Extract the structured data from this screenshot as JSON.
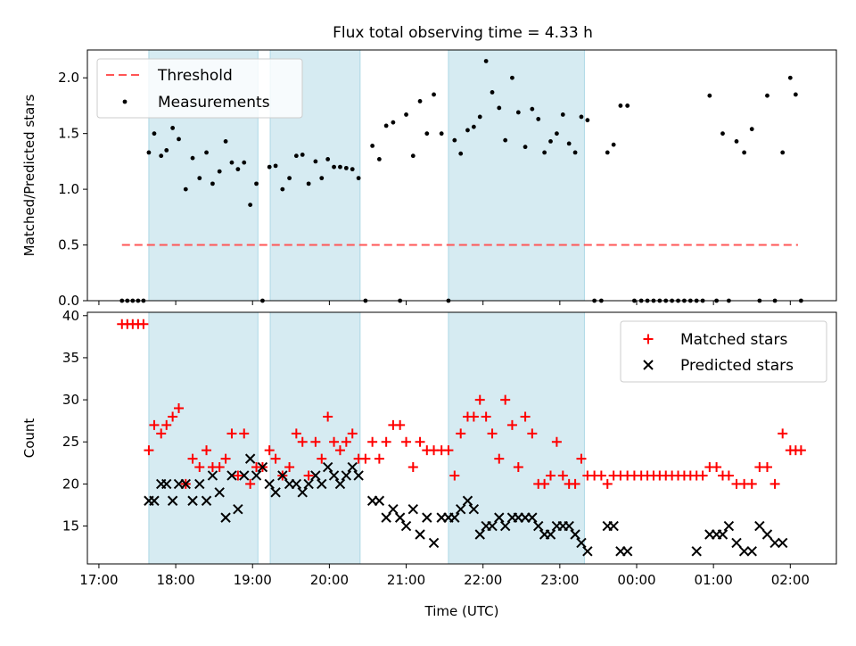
{
  "figure_title": "Flux total observing time = 4.33 h",
  "colors": {
    "shade": "#add8e6",
    "threshold": "#ff5555",
    "matched": "#ff0000",
    "measure": "#000000",
    "predicted": "#000000"
  },
  "chart_data": [
    {
      "type": "scatter",
      "title": "Flux total observing time = 4.33 h",
      "ylabel": "Matched/Predicted stars",
      "xlabel": "",
      "xlim": [
        16.85,
        26.6
      ],
      "ylim": [
        0.0,
        2.25
      ],
      "yticks": [
        0.0,
        0.5,
        1.0,
        1.5,
        2.0
      ],
      "ytick_labels": [
        "0.0",
        "0.5",
        "1.0",
        "1.5",
        "2.0"
      ],
      "legend": {
        "placement": "top-left",
        "entries": [
          "Threshold",
          "Measurements"
        ]
      },
      "shaded_intervals": [
        [
          17.65,
          19.07
        ],
        [
          19.23,
          20.4
        ],
        [
          21.55,
          23.32
        ]
      ],
      "threshold": {
        "name": "Threshold",
        "y": 0.5,
        "x_range": [
          17.3,
          26.1
        ]
      },
      "series": [
        {
          "name": "Measurements",
          "x": [
            17.3,
            17.37,
            17.44,
            17.51,
            17.58,
            17.65,
            17.72,
            17.81,
            17.88,
            17.96,
            18.04,
            18.13,
            18.22,
            18.31,
            18.4,
            18.48,
            18.57,
            18.65,
            18.73,
            18.81,
            18.89,
            18.97,
            19.05,
            19.13,
            19.22,
            19.3,
            19.39,
            19.48,
            19.57,
            19.65,
            19.73,
            19.82,
            19.9,
            19.98,
            20.06,
            20.14,
            20.22,
            20.3,
            20.38,
            20.47,
            20.56,
            20.65,
            20.74,
            20.83,
            20.92,
            21.0,
            21.09,
            21.18,
            21.27,
            21.36,
            21.46,
            21.55,
            21.63,
            21.71,
            21.8,
            21.88,
            21.96,
            22.04,
            22.12,
            22.21,
            22.29,
            22.38,
            22.46,
            22.55,
            22.64,
            22.72,
            22.8,
            22.88,
            22.96,
            23.04,
            23.12,
            23.2,
            23.28,
            23.36,
            23.45,
            23.54,
            23.62,
            23.7,
            23.79,
            23.88,
            23.97,
            24.06,
            24.14,
            24.22,
            24.3,
            24.38,
            24.46,
            24.54,
            24.62,
            24.7,
            24.78,
            24.86,
            24.95,
            25.04,
            25.12,
            25.2,
            25.3,
            25.4,
            25.5,
            25.6,
            25.7,
            25.8,
            25.9,
            26.0,
            26.07,
            26.14
          ],
          "y": [
            0.0,
            0.0,
            0.0,
            0.0,
            0.0,
            1.33,
            1.5,
            1.3,
            1.35,
            1.55,
            1.45,
            1.0,
            1.28,
            1.1,
            1.33,
            1.05,
            1.16,
            1.43,
            1.24,
            1.18,
            1.24,
            0.86,
            1.05,
            0.0,
            1.2,
            1.21,
            1.0,
            1.1,
            1.3,
            1.31,
            1.05,
            1.25,
            1.1,
            1.27,
            1.2,
            1.2,
            1.19,
            1.18,
            1.1,
            0.0,
            1.39,
            1.27,
            1.57,
            1.6,
            0.0,
            1.67,
            1.3,
            1.79,
            1.5,
            1.85,
            1.5,
            0.0,
            1.44,
            1.32,
            1.53,
            1.56,
            1.65,
            2.15,
            1.87,
            1.73,
            1.44,
            2.0,
            1.69,
            1.38,
            1.72,
            1.63,
            1.33,
            1.43,
            1.5,
            1.67,
            1.41,
            1.33,
            1.65,
            1.62,
            0.0,
            0.0,
            1.33,
            1.4,
            1.75,
            1.75,
            0.0,
            0.0,
            0.0,
            0.0,
            0.0,
            0.0,
            0.0,
            0.0,
            0.0,
            0.0,
            0.0,
            0.0,
            1.84,
            0.0,
            1.5,
            0.0,
            1.43,
            1.33,
            1.54,
            0.0,
            1.84,
            0.0,
            1.33,
            2.0,
            1.85,
            0.0
          ]
        }
      ]
    },
    {
      "type": "scatter",
      "title": "",
      "xlabel": "Time (UTC)",
      "ylabel": "Count",
      "xlim": [
        16.85,
        26.6
      ],
      "ylim": [
        10.5,
        40.4
      ],
      "yticks": [
        15,
        20,
        25,
        30,
        35,
        40
      ],
      "ytick_labels": [
        "15",
        "20",
        "25",
        "30",
        "35",
        "40"
      ],
      "xticks": [
        17,
        18,
        19,
        20,
        21,
        22,
        23,
        24,
        25,
        26
      ],
      "xtick_labels": [
        "17:00",
        "18:00",
        "19:00",
        "20:00",
        "21:00",
        "22:00",
        "23:00",
        "00:00",
        "01:00",
        "02:00"
      ],
      "legend": {
        "placement": "top-right",
        "entries": [
          "Matched stars",
          "Predicted stars"
        ]
      },
      "shaded_intervals": [
        [
          17.65,
          19.07
        ],
        [
          19.23,
          20.4
        ],
        [
          21.55,
          23.32
        ]
      ],
      "series": [
        {
          "name": "Matched stars",
          "x": [
            17.3,
            17.37,
            17.44,
            17.51,
            17.58,
            17.65,
            17.72,
            17.81,
            17.88,
            17.96,
            18.04,
            18.13,
            18.22,
            18.31,
            18.4,
            18.48,
            18.57,
            18.65,
            18.73,
            18.81,
            18.89,
            18.97,
            19.05,
            19.13,
            19.22,
            19.3,
            19.39,
            19.48,
            19.57,
            19.65,
            19.73,
            19.82,
            19.9,
            19.98,
            20.06,
            20.14,
            20.22,
            20.3,
            20.38,
            20.47,
            20.56,
            20.65,
            20.74,
            20.83,
            20.92,
            21.0,
            21.09,
            21.18,
            21.27,
            21.36,
            21.46,
            21.55,
            21.63,
            21.71,
            21.8,
            21.88,
            21.96,
            22.04,
            22.12,
            22.21,
            22.29,
            22.38,
            22.46,
            22.55,
            22.64,
            22.72,
            22.8,
            22.88,
            22.96,
            23.04,
            23.12,
            23.2,
            23.28,
            23.36,
            23.45,
            23.54,
            23.62,
            23.7,
            23.79,
            23.88,
            23.97,
            24.06,
            24.14,
            24.22,
            24.3,
            24.38,
            24.46,
            24.54,
            24.62,
            24.7,
            24.78,
            24.86,
            24.95,
            25.04,
            25.12,
            25.2,
            25.3,
            25.4,
            25.5,
            25.6,
            25.7,
            25.8,
            25.9,
            26.0,
            26.07,
            26.14
          ],
          "y": [
            39,
            39,
            39,
            39,
            39,
            24,
            27,
            26,
            27,
            28,
            29,
            20,
            23,
            22,
            24,
            22,
            22,
            23,
            26,
            21,
            26,
            20,
            22,
            22,
            24,
            23,
            21,
            22,
            26,
            25,
            21,
            25,
            23,
            28,
            25,
            24,
            25,
            26,
            23,
            23,
            25,
            23,
            25,
            27,
            27,
            25,
            22,
            25,
            24,
            24,
            24,
            24,
            21,
            26,
            28,
            28,
            30,
            28,
            26,
            23,
            30,
            27,
            22,
            28,
            26,
            20,
            20,
            21,
            25,
            21,
            20,
            20,
            23,
            21,
            21,
            21,
            20,
            21,
            21,
            21,
            21,
            21,
            21,
            21,
            21,
            21,
            21,
            21,
            21,
            21,
            21,
            21,
            22,
            22,
            21,
            21,
            20,
            20,
            20,
            22,
            22,
            20,
            26,
            24,
            24,
            24
          ]
        },
        {
          "name": "Predicted stars",
          "x": [
            17.65,
            17.72,
            17.81,
            17.88,
            17.96,
            18.04,
            18.13,
            18.22,
            18.31,
            18.4,
            18.48,
            18.57,
            18.65,
            18.73,
            18.81,
            18.89,
            18.97,
            19.05,
            19.13,
            19.22,
            19.3,
            19.39,
            19.48,
            19.57,
            19.65,
            19.73,
            19.82,
            19.9,
            19.98,
            20.06,
            20.14,
            20.22,
            20.3,
            20.38,
            20.56,
            20.65,
            20.74,
            20.83,
            20.92,
            21.0,
            21.09,
            21.18,
            21.27,
            21.36,
            21.46,
            21.55,
            21.63,
            21.71,
            21.8,
            21.88,
            21.96,
            22.04,
            22.12,
            22.21,
            22.29,
            22.38,
            22.46,
            22.55,
            22.64,
            22.72,
            22.8,
            22.88,
            22.96,
            23.04,
            23.12,
            23.2,
            23.28,
            23.36,
            23.62,
            23.7,
            23.79,
            23.88,
            24.78,
            24.95,
            25.04,
            25.12,
            25.2,
            25.3,
            25.4,
            25.5,
            25.6,
            25.7,
            25.8,
            25.9
          ],
          "y": [
            18,
            18,
            20,
            20,
            18,
            20,
            20,
            18,
            20,
            18,
            21,
            19,
            16,
            21,
            17,
            21,
            23,
            21,
            22,
            20,
            19,
            21,
            20,
            20,
            19,
            20,
            21,
            20,
            22,
            21,
            20,
            21,
            22,
            21,
            18,
            18,
            16,
            17,
            16,
            15,
            17,
            14,
            16,
            13,
            16,
            16,
            16,
            17,
            18,
            17,
            14,
            15,
            15,
            16,
            15,
            16,
            16,
            16,
            16,
            15,
            14,
            14,
            15,
            15,
            15,
            14,
            13,
            12,
            15,
            15,
            12,
            12,
            12,
            14,
            14,
            14,
            15,
            13,
            12,
            12,
            15,
            14,
            13,
            13
          ]
        }
      ]
    }
  ]
}
